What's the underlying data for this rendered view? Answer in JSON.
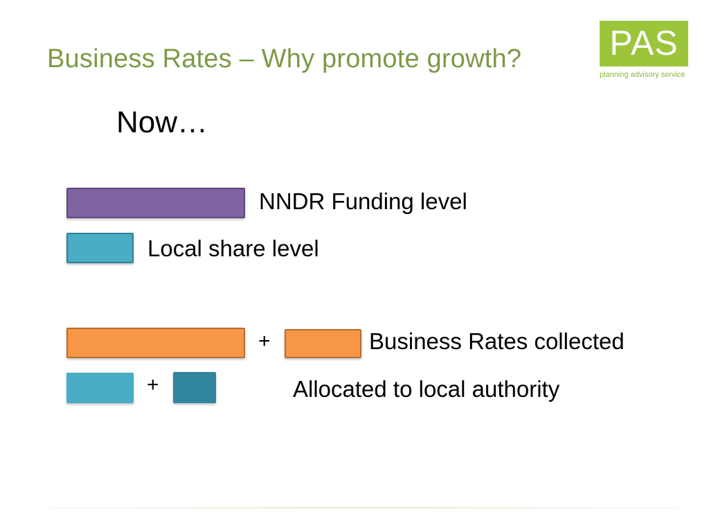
{
  "slide": {
    "title": "Business Rates – Why promote growth?",
    "subheading": "Now…"
  },
  "logo": {
    "letters": "PAS",
    "tagline": "planning advisory service",
    "color": "#9cc53c"
  },
  "legend": {
    "nndr_label": "NNDR Funding level",
    "local_share_label": "Local share level"
  },
  "equation": {
    "row1_plus": "+",
    "row1_label": "Business Rates collected",
    "row2_plus": "+",
    "row2_label": "Allocated to local authority"
  },
  "colors": {
    "nndr": "#8064a2",
    "local_share": "#4bacc6",
    "business_rates": "#f79646",
    "local_growth": "#31859c"
  }
}
